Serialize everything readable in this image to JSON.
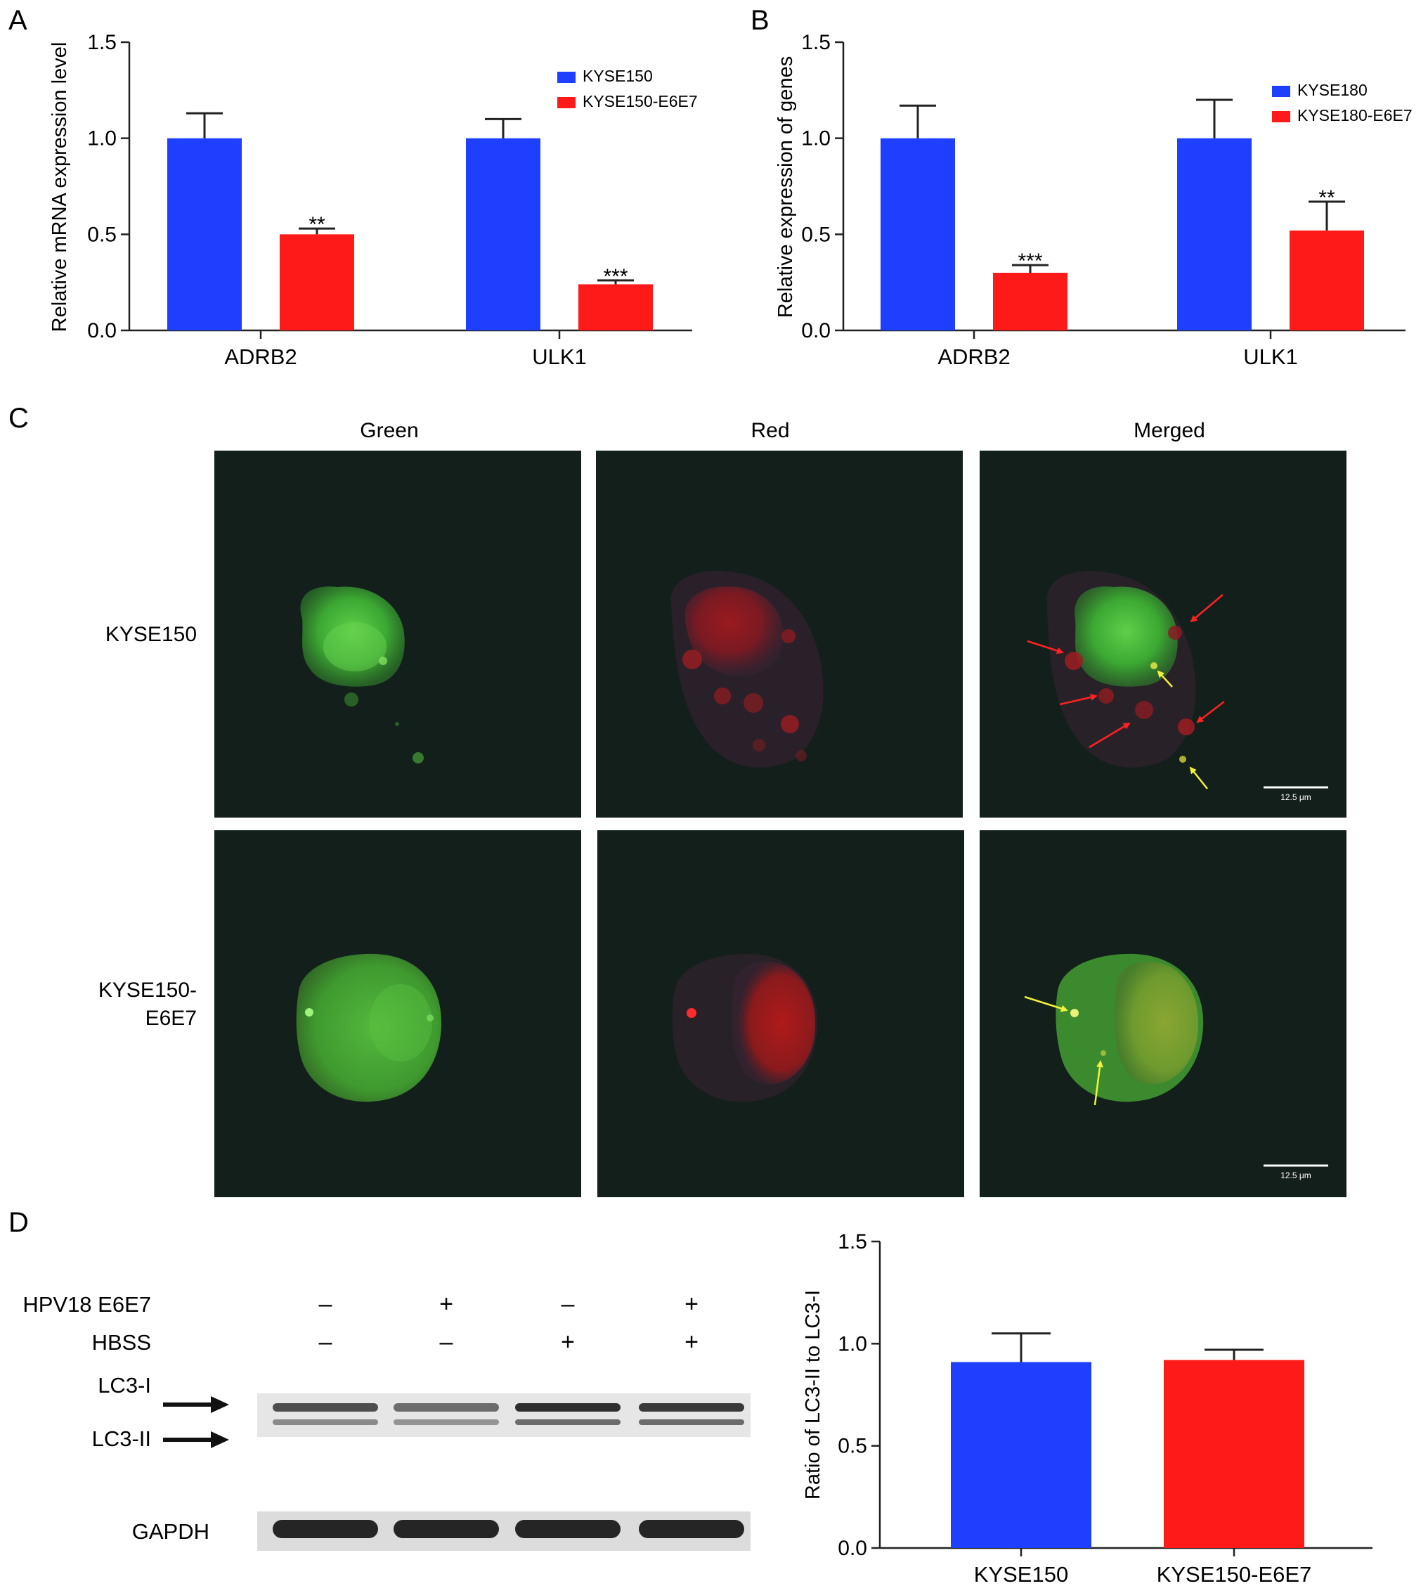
{
  "panels": {
    "a": {
      "letter": "A"
    },
    "b": {
      "letter": "B"
    },
    "c": {
      "letter": "C"
    },
    "d": {
      "letter": "D"
    }
  },
  "chart_data": [
    {
      "id": "A",
      "type": "bar",
      "ylabel": "Relative mRNA expression level",
      "ylim": [
        0,
        1.5
      ],
      "yticks": [
        "0.0",
        "0.5",
        "1.0",
        "1.5"
      ],
      "categories": [
        "ADRB2",
        "ULK1"
      ],
      "series": [
        {
          "name": "KYSE150",
          "color": "#1f3fff",
          "values": [
            1.0,
            1.0
          ],
          "errors": [
            0.13,
            0.1
          ]
        },
        {
          "name": "KYSE150-E6E7",
          "color": "#ff1a1a",
          "values": [
            0.5,
            0.24
          ],
          "errors": [
            0.03,
            0.02
          ]
        }
      ],
      "significance": [
        {
          "category": 0,
          "series": 1,
          "label": "**"
        },
        {
          "category": 1,
          "series": 1,
          "label": "***"
        }
      ],
      "legend": "top-right"
    },
    {
      "id": "B",
      "type": "bar",
      "ylabel": "Relative expression of genes",
      "ylim": [
        0,
        1.5
      ],
      "yticks": [
        "0.0",
        "0.5",
        "1.0",
        "1.5"
      ],
      "categories": [
        "ADRB2",
        "ULK1"
      ],
      "series": [
        {
          "name": "KYSE180",
          "color": "#1f3fff",
          "values": [
            1.0,
            1.0
          ],
          "errors": [
            0.17,
            0.2
          ]
        },
        {
          "name": "KYSE180-E6E7",
          "color": "#ff1a1a",
          "values": [
            0.3,
            0.52
          ],
          "errors": [
            0.04,
            0.15
          ]
        }
      ],
      "significance": [
        {
          "category": 0,
          "series": 1,
          "label": "***"
        },
        {
          "category": 1,
          "series": 1,
          "label": "**"
        }
      ],
      "legend": "top-right"
    },
    {
      "id": "D",
      "type": "bar",
      "ylabel": "Ratio of LC3-II to LC3-I",
      "ylim": [
        0,
        1.5
      ],
      "yticks": [
        "0.0",
        "0.5",
        "1.0",
        "1.5"
      ],
      "categories": [
        "KYSE150",
        "KYSE150-E6E7"
      ],
      "series": [
        {
          "name": "",
          "colors": [
            "#1f3fff",
            "#ff1a1a"
          ],
          "values": [
            0.91,
            0.92
          ],
          "errors": [
            0.14,
            0.05
          ]
        }
      ]
    }
  ],
  "microscopy": {
    "columns": [
      "Green",
      "Red",
      "Merged"
    ],
    "rows": [
      {
        "label_lines": [
          "KYSE150"
        ]
      },
      {
        "label_lines": [
          "KYSE150-",
          "E6E7"
        ]
      }
    ],
    "scalebar": "12.5 μm",
    "bg_color": "#131f1b"
  },
  "blot": {
    "condition_rows": [
      {
        "label": "HPV18 E6E7",
        "signs": [
          "–",
          "+",
          "–",
          "+"
        ]
      },
      {
        "label": "HBSS",
        "signs": [
          "–",
          "–",
          "+",
          "+"
        ]
      }
    ],
    "band_labels": {
      "lc3_1": "LC3-I",
      "lc3_2": "LC3-II",
      "gapdh": "GAPDH"
    },
    "lc3_1_intensity": [
      0.75,
      0.6,
      0.9,
      0.85
    ],
    "lc3_2_intensity": [
      0.45,
      0.4,
      0.6,
      0.6
    ],
    "gapdh_intensity": [
      0.95,
      0.95,
      0.95,
      0.95
    ]
  }
}
